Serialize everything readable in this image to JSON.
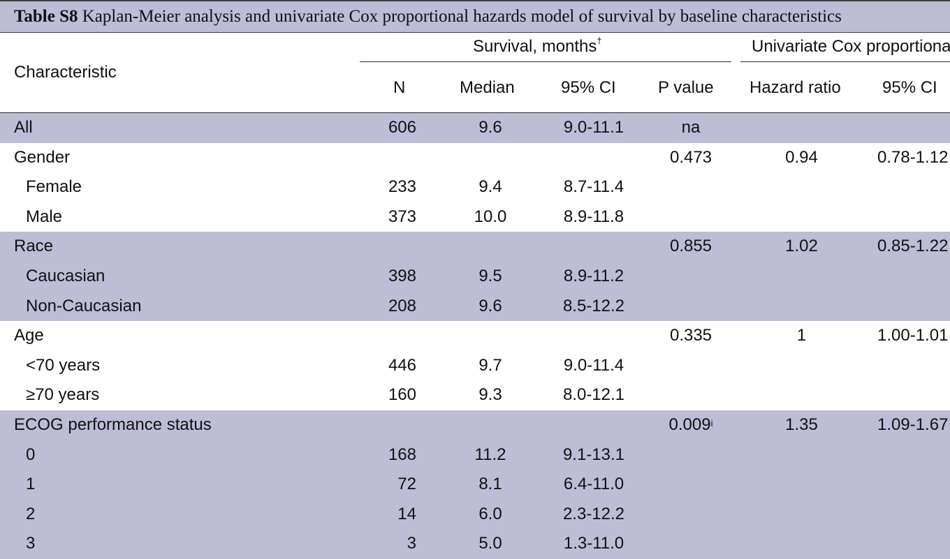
{
  "caption": {
    "label": "Table S8",
    "text": " Kaplan-Meier analysis and univariate Cox proportional hazards model of survival by baseline characteristics"
  },
  "header": {
    "characteristic": "Characteristic",
    "survival_group": "Survival, months",
    "survival_mark": "†",
    "cox_group": "Univariate Cox proportional hazards",
    "n": "N",
    "median": "Median",
    "ci": "95% CI",
    "p_value": "P value",
    "hazard_ratio": "Hazard ratio",
    "hr_ci": "95% CI"
  },
  "rows": [
    {
      "label": "All",
      "indent": false,
      "shade": true,
      "n": "606",
      "median": "9.6",
      "ci": "9.0-11.1",
      "p": "na",
      "p_mark": "",
      "hr": "",
      "hr_ci": ""
    },
    {
      "label": "Gender",
      "indent": false,
      "shade": false,
      "n": "",
      "median": "",
      "ci": "",
      "p": "0.473",
      "p_mark": "",
      "hr": "0.94",
      "hr_ci": "0.78-1.12"
    },
    {
      "label": "Female",
      "indent": true,
      "shade": false,
      "n": "233",
      "median": "9.4",
      "ci": "8.7-11.4",
      "p": "",
      "p_mark": "",
      "hr": "",
      "hr_ci": ""
    },
    {
      "label": "Male",
      "indent": true,
      "shade": false,
      "n": "373",
      "median": "10.0",
      "ci": "8.9-11.8",
      "p": "",
      "p_mark": "",
      "hr": "",
      "hr_ci": ""
    },
    {
      "label": "Race",
      "indent": false,
      "shade": true,
      "n": "",
      "median": "",
      "ci": "",
      "p": "0.855",
      "p_mark": "",
      "hr": "1.02",
      "hr_ci": "0.85-1.22"
    },
    {
      "label": "Caucasian",
      "indent": true,
      "shade": true,
      "n": "398",
      "median": "9.5",
      "ci": "8.9-11.2",
      "p": "",
      "p_mark": "",
      "hr": "",
      "hr_ci": ""
    },
    {
      "label": "Non-Caucasian",
      "indent": true,
      "shade": true,
      "n": "208",
      "median": "9.6",
      "ci": "8.5-12.2",
      "p": "",
      "p_mark": "",
      "hr": "",
      "hr_ci": ""
    },
    {
      "label": "Age",
      "indent": false,
      "shade": false,
      "n": "",
      "median": "",
      "ci": "",
      "p": "0.335",
      "p_mark": "",
      "hr": "1",
      "hr_ci": "1.00-1.01"
    },
    {
      "label": "<70 years",
      "indent": true,
      "shade": false,
      "n": "446",
      "median": "9.7",
      "ci": "9.0-11.4",
      "p": "",
      "p_mark": "",
      "hr": "",
      "hr_ci": ""
    },
    {
      "label": "≥70 years",
      "indent": true,
      "shade": false,
      "n": "160",
      "median": "9.3",
      "ci": "8.0-12.1",
      "p": "",
      "p_mark": "",
      "hr": "",
      "hr_ci": ""
    },
    {
      "label": "ECOG performance status",
      "indent": false,
      "shade": true,
      "n": "",
      "median": "",
      "ci": "",
      "p": "0.009",
      "p_mark": "i",
      "hr": "1.35",
      "hr_ci": "1.09-1.67"
    },
    {
      "label": "0",
      "indent": true,
      "shade": true,
      "n": "168",
      "median": "11.2",
      "ci": "9.1-13.1",
      "p": "",
      "p_mark": "",
      "hr": "",
      "hr_ci": ""
    },
    {
      "label": "1",
      "indent": true,
      "shade": true,
      "n": "72",
      "median": "8.1",
      "ci": "6.4-11.0",
      "p": "",
      "p_mark": "",
      "hr": "",
      "hr_ci": ""
    },
    {
      "label": "2",
      "indent": true,
      "shade": true,
      "n": "14",
      "median": "6.0",
      "ci": "2.3-12.2",
      "p": "",
      "p_mark": "",
      "hr": "",
      "hr_ci": ""
    },
    {
      "label": "3",
      "indent": true,
      "shade": true,
      "n": "3",
      "median": "5.0",
      "ci": "1.3-11.0",
      "p": "",
      "p_mark": "",
      "hr": "",
      "hr_ci": ""
    }
  ]
}
